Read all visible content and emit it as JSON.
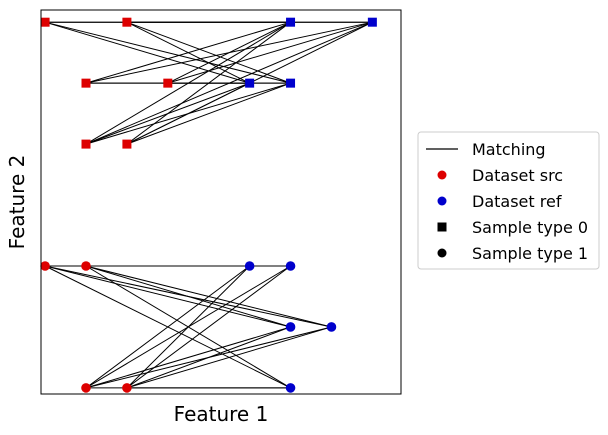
{
  "chart_data": {
    "type": "scatter",
    "title": "",
    "xlabel": "Feature 1",
    "ylabel": "Feature 2",
    "xlim": [
      -0.1,
      8.7
    ],
    "ylim": [
      -0.1,
      6.2
    ],
    "grid": false,
    "ticks_visible": false,
    "legend_placement": "center-right outside",
    "series": [
      {
        "name": "Dataset src",
        "color": "#dd0000",
        "points": [
          {
            "x": 0,
            "y": 6,
            "type": 0
          },
          {
            "x": 2,
            "y": 6,
            "type": 0
          },
          {
            "x": 1,
            "y": 5,
            "type": 0
          },
          {
            "x": 3,
            "y": 5,
            "type": 0
          },
          {
            "x": 1,
            "y": 4,
            "type": 0
          },
          {
            "x": 2,
            "y": 4,
            "type": 0
          },
          {
            "x": 0,
            "y": 2,
            "type": 1
          },
          {
            "x": 1,
            "y": 2,
            "type": 1
          },
          {
            "x": 1,
            "y": 0,
            "type": 1
          },
          {
            "x": 2,
            "y": 0,
            "type": 1
          }
        ]
      },
      {
        "name": "Dataset ref",
        "color": "#0000cc",
        "points": [
          {
            "x": 6,
            "y": 6,
            "type": 0
          },
          {
            "x": 8,
            "y": 6,
            "type": 0
          },
          {
            "x": 5,
            "y": 5,
            "type": 0
          },
          {
            "x": 6,
            "y": 5,
            "type": 0
          },
          {
            "x": 5,
            "y": 2,
            "type": 1
          },
          {
            "x": 6,
            "y": 2,
            "type": 1
          },
          {
            "x": 6,
            "y": 1,
            "type": 1
          },
          {
            "x": 7,
            "y": 1,
            "type": 1
          },
          {
            "x": 6,
            "y": 0,
            "type": 1
          }
        ]
      }
    ],
    "matching": [
      [
        [
          0,
          6
        ],
        [
          6,
          6
        ]
      ],
      [
        [
          0,
          6
        ],
        [
          8,
          6
        ]
      ],
      [
        [
          0,
          6
        ],
        [
          5,
          5
        ]
      ],
      [
        [
          0,
          6
        ],
        [
          6,
          5
        ]
      ],
      [
        [
          2,
          6
        ],
        [
          6,
          6
        ]
      ],
      [
        [
          2,
          6
        ],
        [
          8,
          6
        ]
      ],
      [
        [
          2,
          6
        ],
        [
          5,
          5
        ]
      ],
      [
        [
          2,
          6
        ],
        [
          6,
          5
        ]
      ],
      [
        [
          1,
          5
        ],
        [
          6,
          6
        ]
      ],
      [
        [
          1,
          5
        ],
        [
          8,
          6
        ]
      ],
      [
        [
          1,
          5
        ],
        [
          5,
          5
        ]
      ],
      [
        [
          1,
          5
        ],
        [
          6,
          5
        ]
      ],
      [
        [
          3,
          5
        ],
        [
          6,
          6
        ]
      ],
      [
        [
          3,
          5
        ],
        [
          8,
          6
        ]
      ],
      [
        [
          3,
          5
        ],
        [
          5,
          5
        ]
      ],
      [
        [
          3,
          5
        ],
        [
          6,
          5
        ]
      ],
      [
        [
          1,
          4
        ],
        [
          6,
          6
        ]
      ],
      [
        [
          1,
          4
        ],
        [
          8,
          6
        ]
      ],
      [
        [
          1,
          4
        ],
        [
          5,
          5
        ]
      ],
      [
        [
          1,
          4
        ],
        [
          6,
          5
        ]
      ],
      [
        [
          2,
          4
        ],
        [
          6,
          6
        ]
      ],
      [
        [
          2,
          4
        ],
        [
          8,
          6
        ]
      ],
      [
        [
          2,
          4
        ],
        [
          5,
          5
        ]
      ],
      [
        [
          2,
          4
        ],
        [
          6,
          5
        ]
      ],
      [
        [
          0,
          2
        ],
        [
          5,
          2
        ]
      ],
      [
        [
          0,
          2
        ],
        [
          6,
          2
        ]
      ],
      [
        [
          0,
          2
        ],
        [
          6,
          1
        ]
      ],
      [
        [
          0,
          2
        ],
        [
          7,
          1
        ]
      ],
      [
        [
          0,
          2
        ],
        [
          6,
          0
        ]
      ],
      [
        [
          1,
          2
        ],
        [
          5,
          2
        ]
      ],
      [
        [
          1,
          2
        ],
        [
          6,
          2
        ]
      ],
      [
        [
          1,
          2
        ],
        [
          6,
          1
        ]
      ],
      [
        [
          1,
          2
        ],
        [
          7,
          1
        ]
      ],
      [
        [
          1,
          2
        ],
        [
          6,
          0
        ]
      ],
      [
        [
          1,
          0
        ],
        [
          5,
          2
        ]
      ],
      [
        [
          1,
          0
        ],
        [
          6,
          2
        ]
      ],
      [
        [
          1,
          0
        ],
        [
          6,
          1
        ]
      ],
      [
        [
          1,
          0
        ],
        [
          7,
          1
        ]
      ],
      [
        [
          1,
          0
        ],
        [
          6,
          0
        ]
      ],
      [
        [
          2,
          0
        ],
        [
          5,
          2
        ]
      ],
      [
        [
          2,
          0
        ],
        [
          6,
          2
        ]
      ],
      [
        [
          2,
          0
        ],
        [
          6,
          1
        ]
      ],
      [
        [
          2,
          0
        ],
        [
          7,
          1
        ]
      ],
      [
        [
          2,
          0
        ],
        [
          6,
          0
        ]
      ]
    ],
    "legend": [
      {
        "label": "Matching",
        "marker": "line",
        "color": "#000000"
      },
      {
        "label": "Dataset src",
        "marker": "circle",
        "color": "#dd0000"
      },
      {
        "label": "Dataset ref",
        "marker": "circle",
        "color": "#0000cc"
      },
      {
        "label": "Sample type 0",
        "marker": "square",
        "color": "#000000"
      },
      {
        "label": "Sample type 1",
        "marker": "circle",
        "color": "#000000"
      }
    ]
  }
}
